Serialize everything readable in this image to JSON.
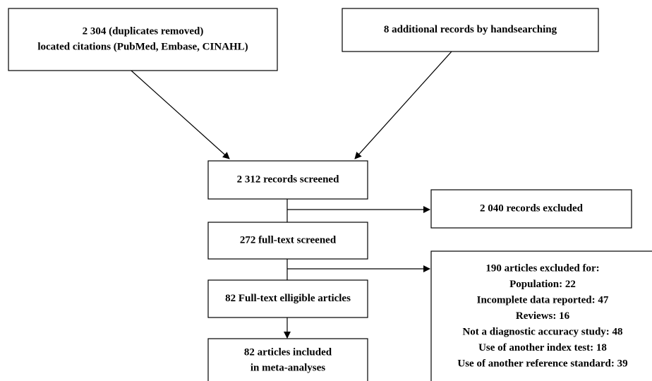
{
  "nodes": [
    {
      "lines": [
        "2 304 (duplicates removed)",
        "located citations (PubMed, Embase, CINAHL)"
      ]
    },
    {
      "lines": [
        "8 additional records by handsearching"
      ]
    },
    {
      "lines": [
        "2 312 records screened"
      ]
    },
    {
      "lines": [
        "2 040 records excluded"
      ]
    },
    {
      "lines": [
        "272 full-text screened"
      ]
    },
    {
      "lines": [
        "82 Full-text elligible articles"
      ]
    },
    {
      "lines": [
        "82 articles included",
        "in meta-analyses"
      ]
    },
    {
      "lines": [
        "190 articles excluded for:",
        "Population: 22",
        "Incomplete data reported: 47",
        "Reviews: 16",
        "Not a diagnostic accuracy study: 48",
        "Use of another index test: 18",
        "Use of another reference standard: 39"
      ]
    }
  ]
}
